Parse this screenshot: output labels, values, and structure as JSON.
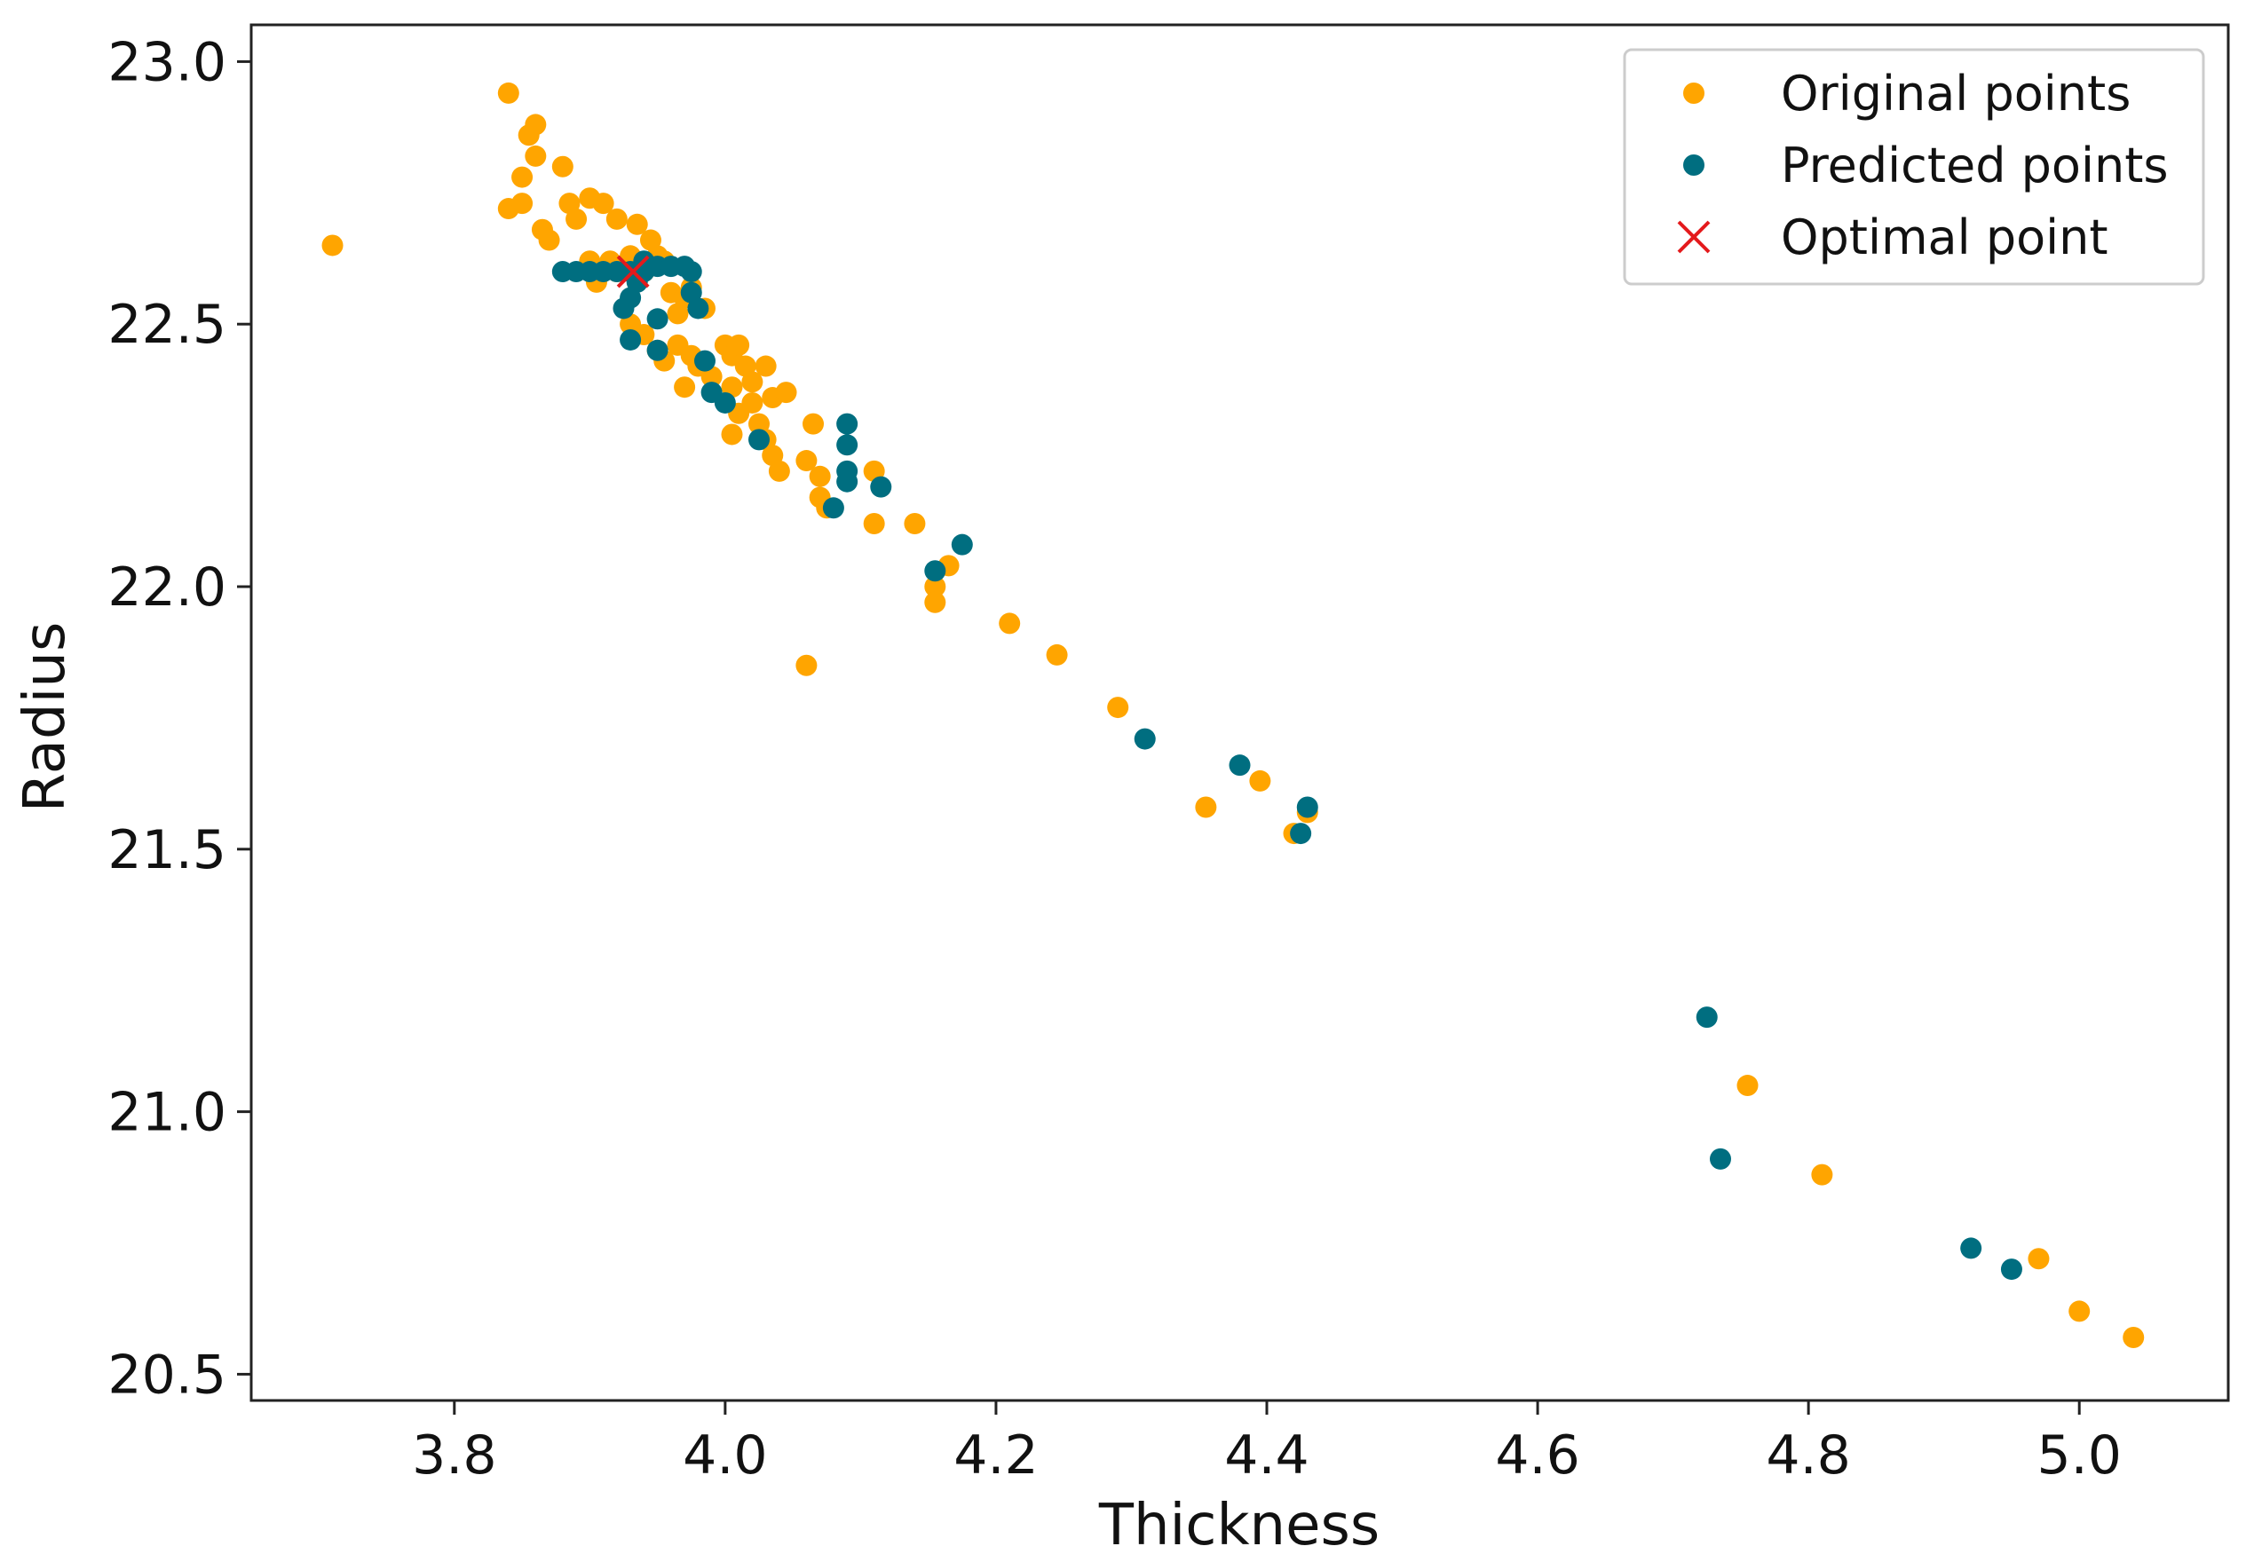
{
  "chart_data": {
    "type": "scatter",
    "title": "",
    "xlabel": "Thickness",
    "ylabel": "Radius",
    "xlim": [
      3.65,
      5.11
    ],
    "ylim": [
      20.45,
      23.07
    ],
    "xticks": [
      3.8,
      4.0,
      4.2,
      4.4,
      4.6,
      4.8,
      5.0
    ],
    "xtick_labels": [
      "3.8",
      "4.0",
      "4.2",
      "4.4",
      "4.6",
      "4.8",
      "5.0"
    ],
    "yticks": [
      20.5,
      21.0,
      21.5,
      22.0,
      22.5,
      23.0
    ],
    "ytick_labels": [
      "20.5",
      "21.0",
      "21.5",
      "22.0",
      "22.5",
      "23.0"
    ],
    "grid": false,
    "legend_position": "top-right",
    "series": [
      {
        "name": "Original points",
        "marker": "circle",
        "color": "#FFA500",
        "points": [
          [
            3.71,
            22.65
          ],
          [
            3.84,
            22.94
          ],
          [
            3.84,
            22.72
          ],
          [
            3.85,
            22.78
          ],
          [
            3.855,
            22.86
          ],
          [
            3.86,
            22.88
          ],
          [
            3.86,
            22.82
          ],
          [
            3.85,
            22.73
          ],
          [
            3.865,
            22.68
          ],
          [
            3.87,
            22.66
          ],
          [
            3.88,
            22.8
          ],
          [
            3.885,
            22.73
          ],
          [
            3.89,
            22.7
          ],
          [
            3.9,
            22.74
          ],
          [
            3.91,
            22.73
          ],
          [
            3.92,
            22.7
          ],
          [
            3.935,
            22.69
          ],
          [
            3.945,
            22.66
          ],
          [
            3.95,
            22.63
          ],
          [
            3.9,
            22.62
          ],
          [
            3.905,
            22.58
          ],
          [
            3.915,
            22.62
          ],
          [
            3.92,
            22.6
          ],
          [
            3.93,
            22.63
          ],
          [
            3.94,
            22.6
          ],
          [
            3.955,
            22.62
          ],
          [
            3.96,
            22.56
          ],
          [
            3.965,
            22.52
          ],
          [
            3.97,
            22.55
          ],
          [
            3.975,
            22.57
          ],
          [
            3.985,
            22.53
          ],
          [
            3.93,
            22.5
          ],
          [
            3.94,
            22.48
          ],
          [
            3.95,
            22.45
          ],
          [
            3.955,
            22.43
          ],
          [
            3.965,
            22.46
          ],
          [
            3.97,
            22.38
          ],
          [
            3.975,
            22.44
          ],
          [
            3.98,
            22.42
          ],
          [
            3.99,
            22.4
          ],
          [
            4.0,
            22.46
          ],
          [
            4.005,
            22.44
          ],
          [
            4.01,
            22.46
          ],
          [
            4.015,
            22.42
          ],
          [
            4.005,
            22.38
          ],
          [
            4.01,
            22.33
          ],
          [
            4.02,
            22.35
          ],
          [
            4.025,
            22.31
          ],
          [
            4.03,
            22.42
          ],
          [
            4.03,
            22.28
          ],
          [
            4.035,
            22.25
          ],
          [
            4.04,
            22.22
          ],
          [
            4.035,
            22.36
          ],
          [
            4.045,
            22.37
          ],
          [
            4.005,
            22.29
          ],
          [
            4.02,
            22.39
          ],
          [
            4.065,
            22.31
          ],
          [
            4.06,
            22.24
          ],
          [
            4.07,
            22.21
          ],
          [
            4.07,
            22.17
          ],
          [
            4.075,
            22.15
          ],
          [
            4.11,
            22.22
          ],
          [
            4.11,
            22.12
          ],
          [
            4.14,
            22.12
          ],
          [
            4.155,
            22.0
          ],
          [
            4.155,
            21.97
          ],
          [
            4.165,
            22.04
          ],
          [
            4.06,
            21.85
          ],
          [
            4.21,
            21.93
          ],
          [
            4.245,
            21.87
          ],
          [
            4.29,
            21.77
          ],
          [
            4.355,
            21.58
          ],
          [
            4.395,
            21.63
          ],
          [
            4.42,
            21.53
          ],
          [
            4.43,
            21.57
          ],
          [
            4.755,
            21.05
          ],
          [
            4.81,
            20.88
          ],
          [
            4.97,
            20.72
          ],
          [
            5.0,
            20.62
          ],
          [
            5.04,
            20.57
          ]
        ]
      },
      {
        "name": "Predicted points",
        "marker": "circle",
        "color": "#006E80",
        "points": [
          [
            3.88,
            22.6
          ],
          [
            3.89,
            22.6
          ],
          [
            3.9,
            22.6
          ],
          [
            3.91,
            22.6
          ],
          [
            3.92,
            22.6
          ],
          [
            3.93,
            22.6
          ],
          [
            3.94,
            22.6
          ],
          [
            3.95,
            22.61
          ],
          [
            3.96,
            22.61
          ],
          [
            3.97,
            22.61
          ],
          [
            3.975,
            22.6
          ],
          [
            3.94,
            22.62
          ],
          [
            3.935,
            22.58
          ],
          [
            3.93,
            22.55
          ],
          [
            3.925,
            22.53
          ],
          [
            3.93,
            22.47
          ],
          [
            3.95,
            22.51
          ],
          [
            3.95,
            22.45
          ],
          [
            3.975,
            22.56
          ],
          [
            3.98,
            22.53
          ],
          [
            3.985,
            22.43
          ],
          [
            3.99,
            22.37
          ],
          [
            4.0,
            22.35
          ],
          [
            4.025,
            22.28
          ],
          [
            4.09,
            22.31
          ],
          [
            4.09,
            22.27
          ],
          [
            4.09,
            22.22
          ],
          [
            4.09,
            22.2
          ],
          [
            4.08,
            22.15
          ],
          [
            4.115,
            22.19
          ],
          [
            4.155,
            22.03
          ],
          [
            4.175,
            22.08
          ],
          [
            4.31,
            21.71
          ],
          [
            4.38,
            21.66
          ],
          [
            4.43,
            21.58
          ],
          [
            4.425,
            21.53
          ],
          [
            4.725,
            21.18
          ],
          [
            4.735,
            20.91
          ],
          [
            4.92,
            20.74
          ],
          [
            4.95,
            20.7
          ]
        ]
      },
      {
        "name": "Optimal point",
        "marker": "x",
        "color": "#E41A1C",
        "points": [
          [
            3.932,
            22.6
          ]
        ]
      }
    ]
  }
}
